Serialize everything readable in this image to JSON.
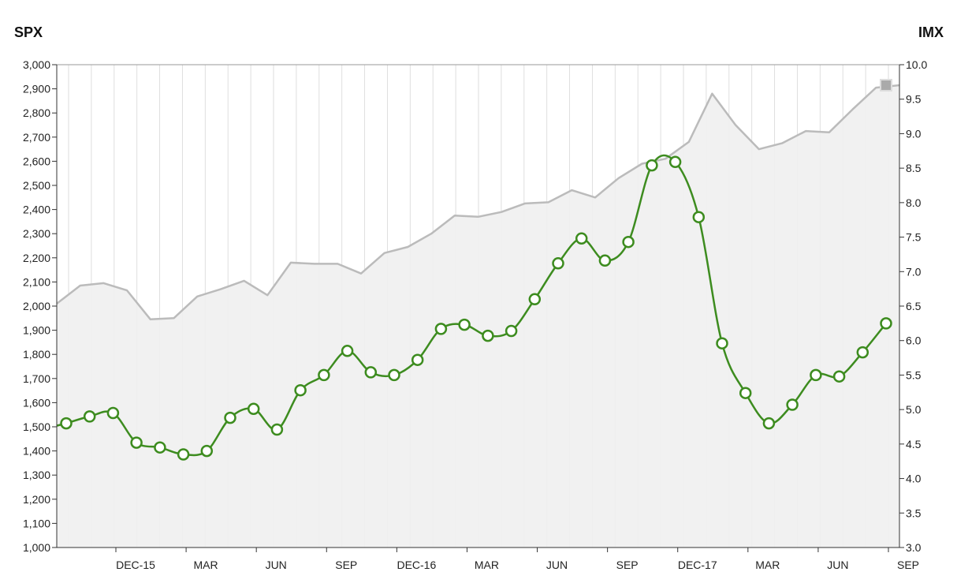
{
  "chart_data": {
    "type": "line",
    "left_axis_title": "SPX",
    "right_axis_title": "IMX",
    "x_tick_labels": [
      "DEC-15",
      "MAR",
      "JUN",
      "SEP",
      "DEC-16",
      "MAR",
      "JUN",
      "SEP",
      "DEC-17",
      "MAR",
      "JUN",
      "SEP"
    ],
    "left_axis": {
      "min": 1000,
      "max": 3000,
      "step": 100,
      "tick_labels": [
        "1,000",
        "1,100",
        "1,200",
        "1,300",
        "1,400",
        "1,500",
        "1,600",
        "1,700",
        "1,800",
        "1,900",
        "2,000",
        "2,100",
        "2,200",
        "2,300",
        "2,400",
        "2,500",
        "2,600",
        "2,700",
        "2,800",
        "2,900",
        "3,000"
      ]
    },
    "right_axis": {
      "min": 3.0,
      "max": 10.0,
      "step": 0.5,
      "tick_labels": [
        "3.0",
        "3.5",
        "4.0",
        "4.5",
        "5.0",
        "5.5",
        "6.0",
        "6.5",
        "7.0",
        "7.5",
        "8.0",
        "8.5",
        "9.0",
        "9.5",
        "10.0"
      ]
    },
    "grid": "vertical",
    "series": [
      {
        "name": "SPX",
        "axis": "left",
        "style": "area",
        "color": "#bbbbbb",
        "fill": "#f0f0f0",
        "values": [
          2010,
          2085,
          2095,
          2065,
          1945,
          1950,
          2040,
          2070,
          2105,
          2045,
          2180,
          2175,
          2175,
          2135,
          2220,
          2245,
          2300,
          2375,
          2370,
          2390,
          2425,
          2430,
          2480,
          2450,
          2530,
          2590,
          2610,
          2680,
          2880,
          2750,
          2650,
          2675,
          2725,
          2720,
          2815,
          2905,
          2915
        ]
      },
      {
        "name": "IMX",
        "axis": "right",
        "style": "line-markers",
        "color": "#3d8c1f",
        "values": [
          4.8,
          4.9,
          4.95,
          4.52,
          4.45,
          4.35,
          4.4,
          4.88,
          5.01,
          4.71,
          5.28,
          5.5,
          5.85,
          5.54,
          5.5,
          5.72,
          6.17,
          6.23,
          6.07,
          6.14,
          6.6,
          7.12,
          7.48,
          7.16,
          7.43,
          8.54,
          8.59,
          7.79,
          5.96,
          5.24,
          4.8,
          5.07,
          5.5,
          5.48,
          5.83,
          6.25
        ]
      }
    ]
  }
}
